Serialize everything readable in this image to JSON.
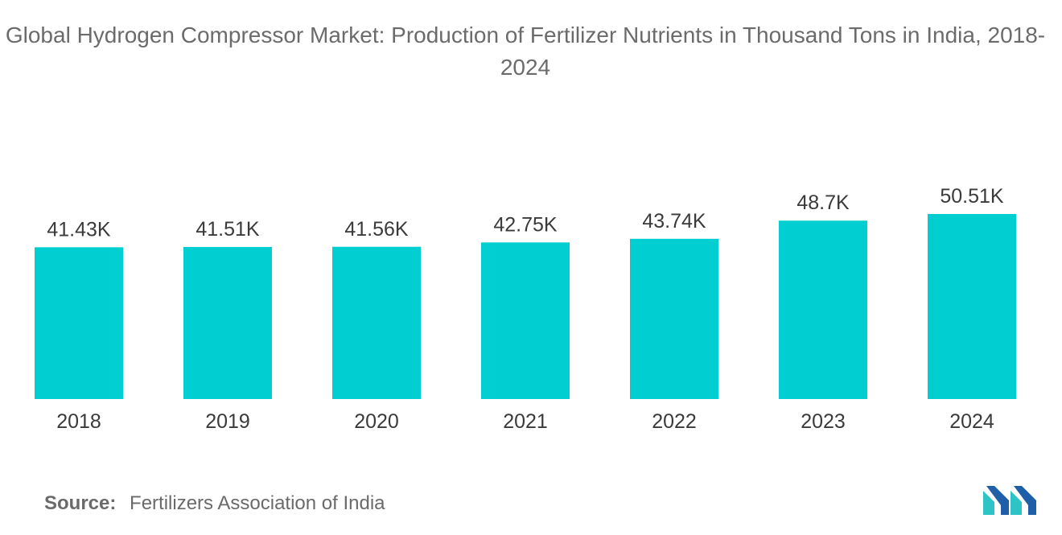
{
  "title": "Global Hydrogen Compressor Market: Production of Fertilizer Nutrients in Thousand Tons in India, 2018-2024",
  "source": {
    "label": "Source:",
    "text": "Fertilizers Association of India"
  },
  "colors": {
    "bar": "#00CED1",
    "text": "#3a3a3a",
    "logo_dark": "#1f5fa8",
    "logo_light": "#2ec4c6"
  },
  "logo": {
    "icon": "mordor-intelligence-logo"
  },
  "chart_data": {
    "type": "bar",
    "categories": [
      "2018",
      "2019",
      "2020",
      "2021",
      "2022",
      "2023",
      "2024"
    ],
    "values": [
      41.43,
      41.51,
      41.56,
      42.75,
      43.74,
      48.7,
      50.51
    ],
    "data_labels": [
      "41.43K",
      "41.51K",
      "41.56K",
      "42.75K",
      "43.74K",
      "48.7K",
      "50.51K"
    ],
    "title": "Global Hydrogen Compressor Market: Production of Fertilizer Nutrients in Thousand Tons in India, 2018-2024",
    "xlabel": "",
    "ylabel": "",
    "ylim": [
      0,
      50.51
    ],
    "grid": false,
    "legend": "none"
  }
}
